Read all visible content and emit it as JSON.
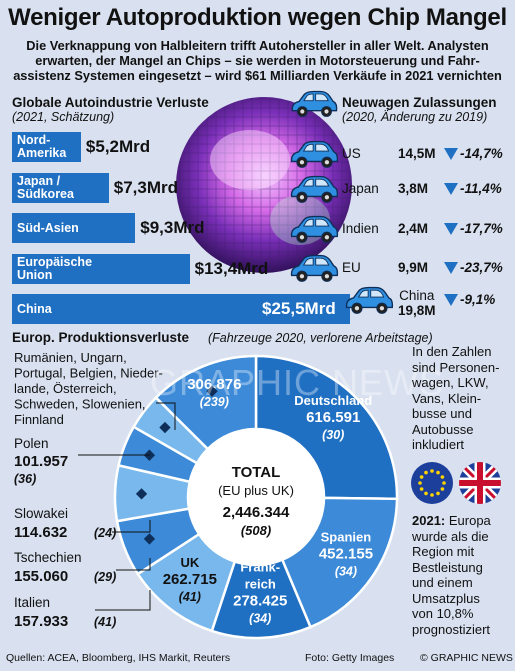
{
  "header": {
    "title": "Weniger Autoproduktion wegen Chip Mangel",
    "subtitle_lines": [
      "Die Verknappung von Halbleitern trifft Autohersteller in aller Welt. Analysten",
      "erwarten, der Mangel an Chips – sie werden in Motorsteuerung und Fahr-",
      "assistenz Systemen eingesetzt – wird $61 Milliarden Verkäufe in 2021 vernichten"
    ]
  },
  "watermark": "GRAPHIC NEWS",
  "colors": {
    "bar": "#1f6fc3",
    "donut_dark": "#1f6fc3",
    "donut_mid": "#3c8ad8",
    "donut_light": "#79b8ec",
    "background": "#d9e1f0",
    "arrow": "#1f6fc3",
    "car": "#2f8fe0"
  },
  "chart_data": [
    {
      "type": "bar",
      "title": "Globale Autoindustrie Verluste",
      "subtitle": "(2021, Schätzung)",
      "categories": [
        [
          "Nord-",
          "Amerika"
        ],
        [
          "Japan /",
          "Südkorea"
        ],
        [
          "Süd-Asien"
        ],
        [
          "Europäische",
          "Union"
        ],
        [
          "China"
        ]
      ],
      "values": [
        5.2,
        7.3,
        9.3,
        13.4,
        25.5
      ],
      "value_labels": [
        "$5,2Mrd",
        "$7,3Mrd",
        "$9,3Mrd",
        "$13,4Mrd",
        "$25,5Mrd"
      ],
      "unit": "Mrd $"
    },
    {
      "type": "table",
      "title": "Neuwagen Zulassungen",
      "subtitle": "(2020, Änderung zu 2019)",
      "rows": [
        {
          "region": [
            "US"
          ],
          "count": "14,5M",
          "change": "-14,7%"
        },
        {
          "region": [
            "Japan"
          ],
          "count": "3,8M",
          "change": "-11,4%"
        },
        {
          "region": [
            "Indien"
          ],
          "count": "2,4M",
          "change": "-17,7%"
        },
        {
          "region": [
            "EU"
          ],
          "count": "9,9M",
          "change": "-23,7%"
        },
        {
          "region": [
            "China",
            "19,8M"
          ],
          "count": "",
          "change": "-9,1%"
        }
      ]
    },
    {
      "type": "pie",
      "title": "Europ. Produktionsverluste",
      "subtitle": "(Fahrzeuge 2020, verlorene Arbeitstage)",
      "center_label": [
        "TOTAL",
        "(EU plus UK)",
        "2,446.344",
        "(508)"
      ],
      "slices": [
        {
          "name": [
            "Deutschland"
          ],
          "value": 616591,
          "value_label": "616.591",
          "days": "(30)"
        },
        {
          "name": [
            "Spanien"
          ],
          "value": 452155,
          "value_label": "452.155",
          "days": "(34)"
        },
        {
          "name": [
            "Frank-",
            "reich"
          ],
          "value": 278425,
          "value_label": "278.425",
          "days": "(34)"
        },
        {
          "name": [
            "UK"
          ],
          "value": 262715,
          "value_label": "262.715",
          "days": "(41)"
        },
        {
          "name": [
            "Italien"
          ],
          "value": 157933,
          "value_label": "157.933",
          "days": "(41)"
        },
        {
          "name": [
            "Tschechien"
          ],
          "value": 155060,
          "value_label": "155.060",
          "days": "(29)"
        },
        {
          "name": [
            "Slowakei"
          ],
          "value": 114632,
          "value_label": "114.632",
          "days": "(24)"
        },
        {
          "name": [
            "Polen"
          ],
          "value": 101957,
          "value_label": "101.957",
          "days": "(36)"
        },
        {
          "name": [
            "Rumänien, Ungarn,",
            "Portugal, Belgien, Nieder-",
            "lande, Österreich,",
            "Schweden, Slowenien,",
            "Finnland"
          ],
          "value": 306876,
          "value_label": "306.876",
          "days": "(239)"
        }
      ]
    }
  ],
  "notes": {
    "vehicles": [
      "In den Zahlen",
      "sind Personen-",
      "wagen, LKW,",
      "Vans, Klein-",
      "busse und",
      "Autobusse",
      "inkludiert"
    ],
    "forecast_year": "2021:",
    "forecast": [
      " Europa",
      "wurde als die",
      "Region mit",
      "Bestleistung",
      "und einem",
      "Umsatzplus",
      "von 10,8%",
      "prognostiziert"
    ]
  },
  "footer": {
    "sources": "Quellen: ACEA, Bloomberg, IHS Markit, Reuters",
    "photo": "Foto: Getty Images",
    "copyright": "© GRAPHIC NEWS"
  },
  "icons": {
    "car": "car-icon",
    "arrow": "arrow-down-icon",
    "eu_flag": "eu-flag-icon",
    "uk_flag": "uk-flag-icon",
    "wafer": "chip-wafer-image"
  }
}
